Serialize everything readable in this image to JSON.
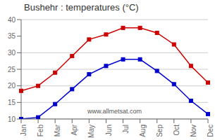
{
  "chart_data": {
    "type": "line",
    "title": "Bushehr : temperatures (°C)",
    "categories": [
      "Jan",
      "Feb",
      "Mar",
      "Apr",
      "May",
      "Jun",
      "Jul",
      "Aug",
      "Sep",
      "Oct",
      "Nov",
      "Dec"
    ],
    "series": [
      {
        "color": "#cc0000",
        "marker": "square",
        "values": [
          18.5,
          20.0,
          24.0,
          29.0,
          34.0,
          35.5,
          37.5,
          37.5,
          36.0,
          32.5,
          26.0,
          21.0
        ]
      },
      {
        "color": "#0000cc",
        "marker": "square",
        "values": [
          10.0,
          10.5,
          14.5,
          19.0,
          23.5,
          26.0,
          28.0,
          28.0,
          24.5,
          20.5,
          15.5,
          11.5
        ]
      }
    ],
    "ylim": [
      10,
      40
    ],
    "yticks": [
      10,
      15,
      20,
      25,
      30,
      35,
      40
    ],
    "grid": true,
    "annotation": "www.allmetsat.com"
  }
}
